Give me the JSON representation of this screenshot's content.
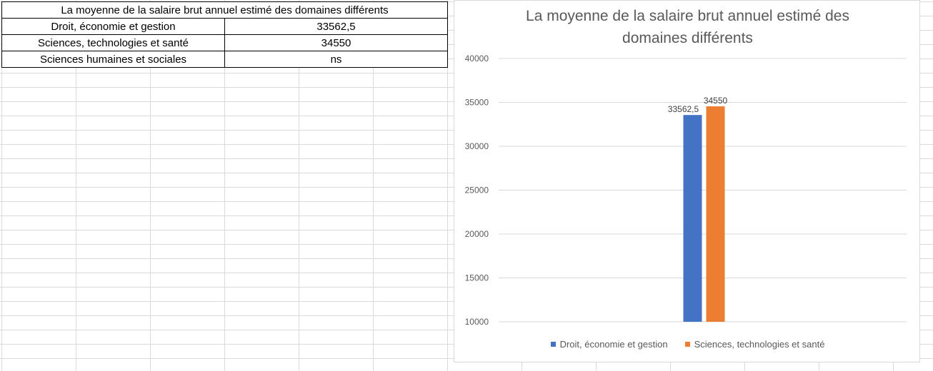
{
  "table": {
    "title": "La moyenne de la salaire brut annuel estimé des domaines différents",
    "rows": [
      {
        "label": "Droit, économie et gestion",
        "value": "33562,5"
      },
      {
        "label": "Sciences, technologies et santé",
        "value": "34550"
      },
      {
        "label": "Sciences humaines et sociales",
        "value": "ns"
      }
    ]
  },
  "chart_data": {
    "type": "bar",
    "title_lines": [
      "La moyenne de la salaire brut annuel estimé des",
      "domaines différents"
    ],
    "categories": [
      ""
    ],
    "series": [
      {
        "name": "Droit, économie et gestion",
        "values": [
          33562.5
        ],
        "label": "33562,5",
        "color": "#4472C4"
      },
      {
        "name": "Sciences, technologies et santé",
        "values": [
          34550
        ],
        "label": "34550",
        "color": "#ED7D31"
      }
    ],
    "ylim": [
      10000,
      40000
    ],
    "yticks": [
      "10000",
      "15000",
      "20000",
      "25000",
      "30000",
      "35000",
      "40000"
    ],
    "grid": true,
    "legend": "bottom",
    "xlabel": "",
    "ylabel": ""
  }
}
